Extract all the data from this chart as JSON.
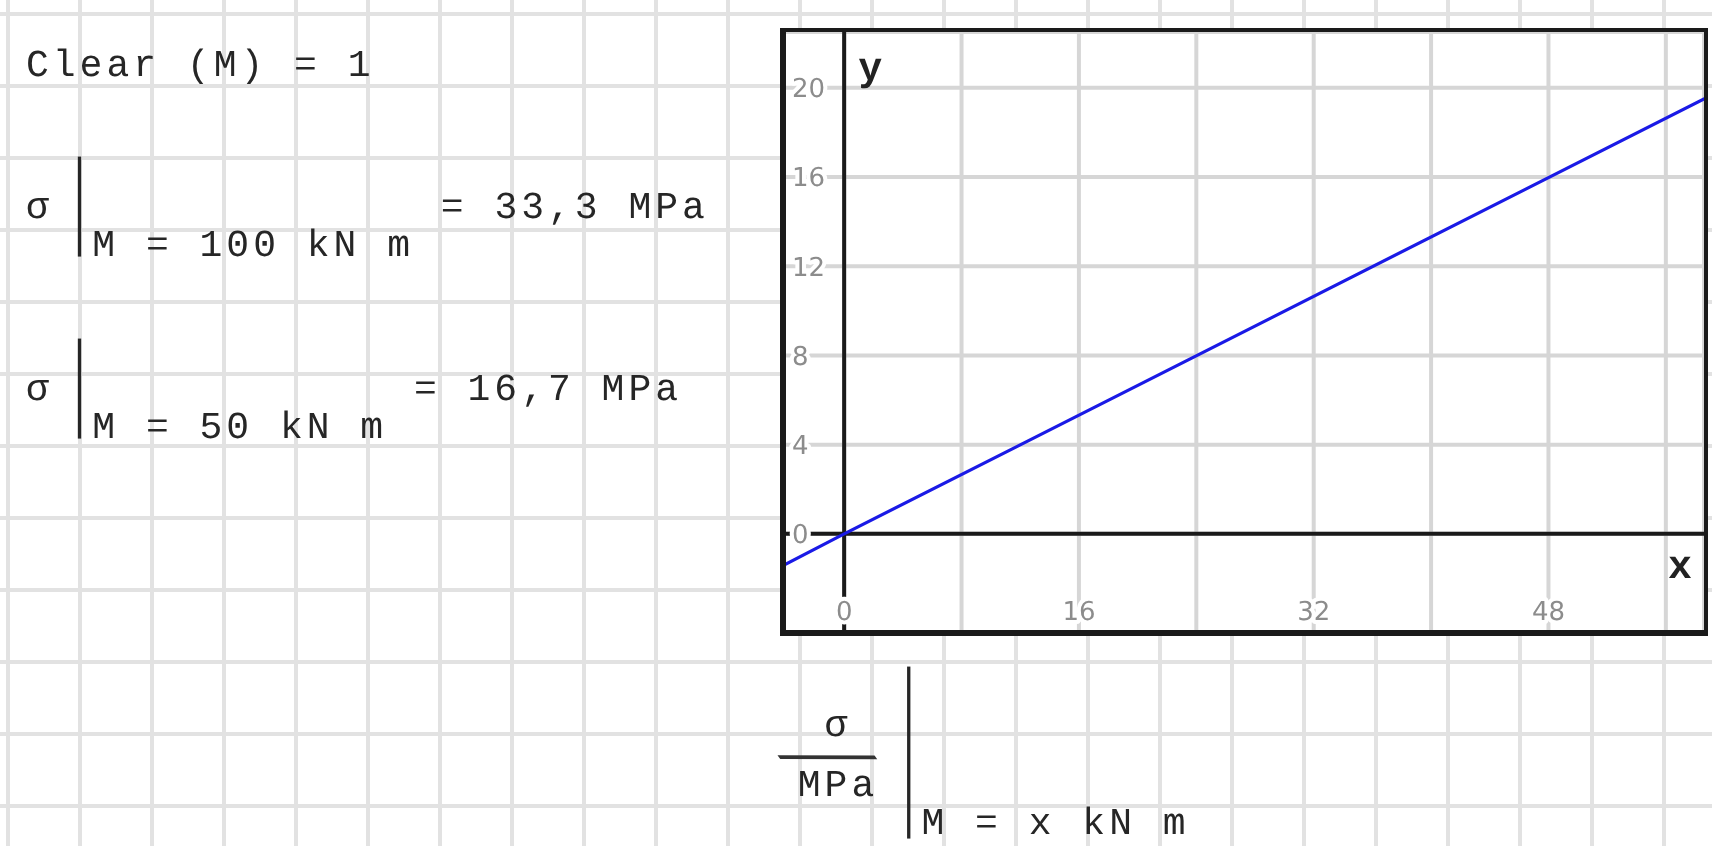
{
  "chart_data": {
    "type": "line",
    "xlabel": "x",
    "ylabel": "y",
    "annotations": [
      "Clear (M) = 1",
      "σ|$_{M = 100 kN m}$ = 33,3 MPa",
      "σ|$_{M = 50 kN m}$ = 16,7 MPa",
      "σ/MPa|$_{M = x kN m}$"
    ],
    "x": [
      -4.1,
      0,
      58.6
    ],
    "series": [
      {
        "color": "#1a1ae6",
        "values": [
          -1.4,
          0,
          19.5
        ]
      }
    ],
    "xlim": [
      -4.1,
      58.6
    ],
    "ylim": [
      -4.4,
      22.5
    ],
    "xticks": [
      0,
      {
        "value": 8,
        "label": null
      },
      16,
      {
        "value": 24,
        "label": null
      },
      32,
      {
        "value": 40,
        "label": null
      },
      48,
      {
        "value": 56,
        "label": null
      }
    ],
    "yticks": [
      0,
      4,
      8,
      12,
      16,
      20
    ],
    "grid": true,
    "line_style": "solid"
  }
}
